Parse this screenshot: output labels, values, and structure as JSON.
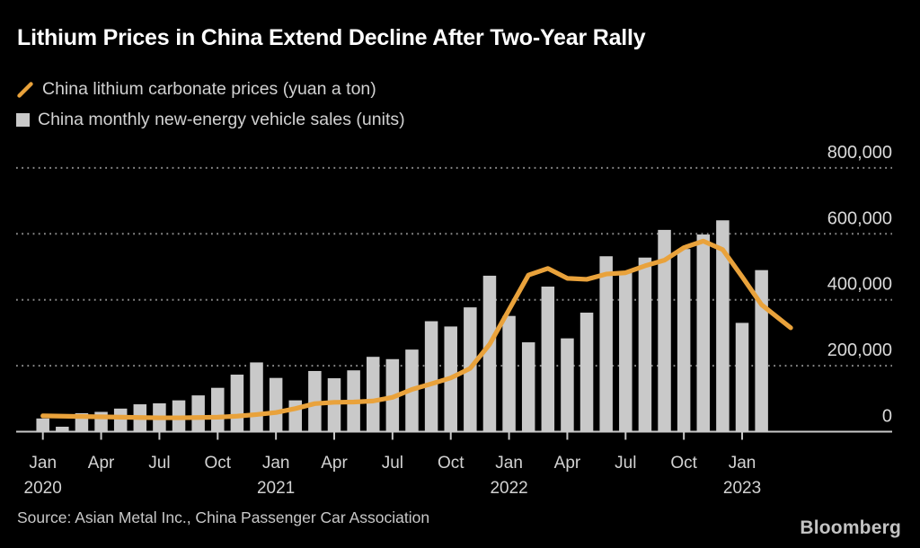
{
  "title": "Lithium Prices in China Extend Decline After Two-Year Rally",
  "legend": {
    "line_series_label": "China lithium carbonate prices (yuan a ton)",
    "bar_series_label": "China monthly new-energy vehicle sales (units)"
  },
  "source": "Source: Asian Metal Inc., China Passenger Car Association",
  "branding": "Bloomberg",
  "colors": {
    "background": "#000000",
    "line": "#E9A23B",
    "bars": "#C9C9C9",
    "grid": "#8A8A8A",
    "axis": "#C9C9C9",
    "title_text": "#FFFFFF",
    "axis_label_text": "#D9D9D9",
    "tick_label_text": "#D2D2D2"
  },
  "chart_data": {
    "type": "bar",
    "title": "Lithium Prices in China Extend Decline After Two-Year Rally",
    "xlabel": "",
    "ylabel": "",
    "ylim": [
      0,
      800000
    ],
    "grid": "horizontal-dotted",
    "legend_position": "top-left",
    "months": [
      "Jan 2020",
      "Feb 2020",
      "Mar 2020",
      "Apr 2020",
      "May 2020",
      "Jun 2020",
      "Jul 2020",
      "Aug 2020",
      "Sep 2020",
      "Oct 2020",
      "Nov 2020",
      "Dec 2020",
      "Jan 2021",
      "Feb 2021",
      "Mar 2021",
      "Apr 2021",
      "May 2021",
      "Jun 2021",
      "Jul 2021",
      "Aug 2021",
      "Sep 2021",
      "Oct 2021",
      "Nov 2021",
      "Dec 2021",
      "Jan 2022",
      "Feb 2022",
      "Mar 2022",
      "Apr 2022",
      "May 2022",
      "Jun 2022",
      "Jul 2022",
      "Aug 2022",
      "Sep 2022",
      "Oct 2022",
      "Nov 2022",
      "Dec 2022",
      "Jan 2023",
      "Feb 2023",
      "Mar 2023"
    ],
    "series": [
      {
        "name": "China monthly new-energy vehicle sales (units)",
        "type": "bar",
        "values": [
          40000,
          15000,
          56000,
          60000,
          70000,
          83000,
          86000,
          95000,
          110000,
          133000,
          173000,
          210000,
          163000,
          95000,
          184000,
          162000,
          186000,
          227000,
          220000,
          249000,
          335000,
          319000,
          377000,
          473000,
          351000,
          271000,
          440000,
          283000,
          361000,
          532000,
          484000,
          528000,
          612000,
          554000,
          598000,
          641000,
          330000,
          490000,
          null
        ]
      },
      {
        "name": "China lithium carbonate prices (yuan a ton)",
        "type": "line",
        "values": [
          48000,
          47000,
          46000,
          45000,
          44000,
          43000,
          42000,
          42000,
          43000,
          44000,
          47000,
          52000,
          58000,
          70000,
          85000,
          89000,
          90000,
          93000,
          104000,
          128000,
          145000,
          163000,
          192000,
          265000,
          370000,
          475000,
          495000,
          465000,
          462000,
          478000,
          482000,
          503000,
          520000,
          558000,
          578000,
          552000,
          470000,
          385000,
          315000
        ]
      }
    ],
    "y_axis": {
      "side": "right",
      "ticks": [
        {
          "value": 800000,
          "label": "800,000"
        },
        {
          "value": 600000,
          "label": "600,000"
        },
        {
          "value": 400000,
          "label": "400,000"
        },
        {
          "value": 200000,
          "label": "200,000"
        },
        {
          "value": 0,
          "label": "0"
        }
      ]
    },
    "x_axis": {
      "ticks": [
        {
          "index": 0,
          "label": "Jan",
          "year": "2020"
        },
        {
          "index": 3,
          "label": "Apr"
        },
        {
          "index": 6,
          "label": "Jul"
        },
        {
          "index": 9,
          "label": "Oct"
        },
        {
          "index": 12,
          "label": "Jan",
          "year": "2021"
        },
        {
          "index": 15,
          "label": "Apr"
        },
        {
          "index": 18,
          "label": "Jul"
        },
        {
          "index": 21,
          "label": "Oct"
        },
        {
          "index": 24,
          "label": "Jan",
          "year": "2022"
        },
        {
          "index": 27,
          "label": "Apr"
        },
        {
          "index": 30,
          "label": "Jul"
        },
        {
          "index": 33,
          "label": "Oct"
        },
        {
          "index": 36,
          "label": "Jan",
          "year": "2023"
        }
      ]
    }
  }
}
